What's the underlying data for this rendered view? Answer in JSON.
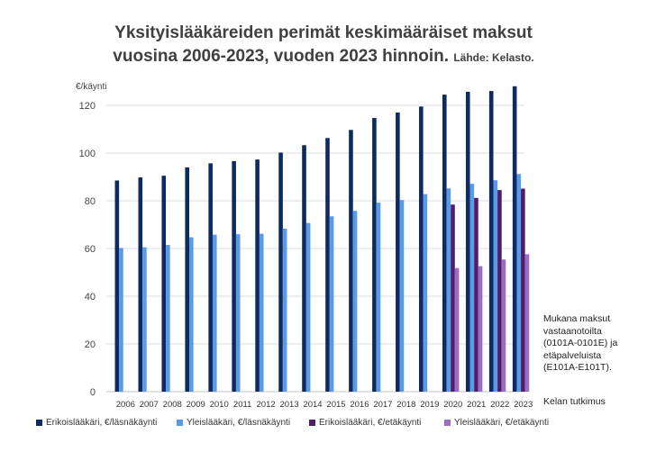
{
  "chart_data": {
    "type": "bar",
    "title": "Yksityislääkäreiden perimät keskimääräiset maksut",
    "title_line2": "vuosina 2006-2023, vuoden 2023 hinnoin.",
    "source": "Lähde: Kelasto.",
    "ylabel": "€/käynti",
    "ylim": [
      0,
      120
    ],
    "yticks": [
      0,
      20,
      40,
      60,
      80,
      100,
      120
    ],
    "grid": true,
    "legend_position": "bottom",
    "categories": [
      "2006",
      "2007",
      "2008",
      "2009",
      "2010",
      "2011",
      "2012",
      "2013",
      "2014",
      "2015",
      "2016",
      "2017",
      "2018",
      "2019",
      "2020",
      "2021",
      "2022",
      "2023"
    ],
    "series": [
      {
        "name": "Erikoislääkäri, €/läsnäkäynti",
        "color": "#0d2a62",
        "values": [
          88.5,
          89.8,
          90.5,
          94.0,
          95.7,
          96.6,
          97.3,
          100.2,
          103.3,
          106.3,
          109.7,
          114.7,
          117.0,
          119.5,
          124.5,
          125.7,
          126.0,
          128.0
        ]
      },
      {
        "name": "Yleislääkäri, €/läsnäkäynti",
        "color": "#5b9be6",
        "values": [
          60.2,
          60.5,
          61.5,
          64.7,
          65.8,
          66.0,
          66.2,
          68.3,
          70.7,
          73.5,
          75.8,
          79.2,
          80.3,
          82.8,
          85.2,
          87.1,
          88.6,
          91.2
        ]
      },
      {
        "name": "Erikoislääkäri, €/etäkäynti",
        "color": "#4f1e6b",
        "values": [
          null,
          null,
          null,
          null,
          null,
          null,
          null,
          null,
          null,
          null,
          null,
          null,
          null,
          null,
          78.4,
          81.2,
          84.5,
          85.1
        ]
      },
      {
        "name": "Yleislääkäri, €/etäkäynti",
        "color": "#9b6cc0",
        "values": [
          null,
          null,
          null,
          null,
          null,
          null,
          null,
          null,
          null,
          null,
          null,
          null,
          null,
          null,
          51.8,
          52.6,
          55.4,
          57.6
        ]
      }
    ],
    "annotations": [
      "Mukana maksut",
      "vastaanotoilta",
      "(0101A-0101E) ja",
      "etäpalveluista",
      "(E101A-E101T).",
      "Kelan tutkimus"
    ]
  }
}
